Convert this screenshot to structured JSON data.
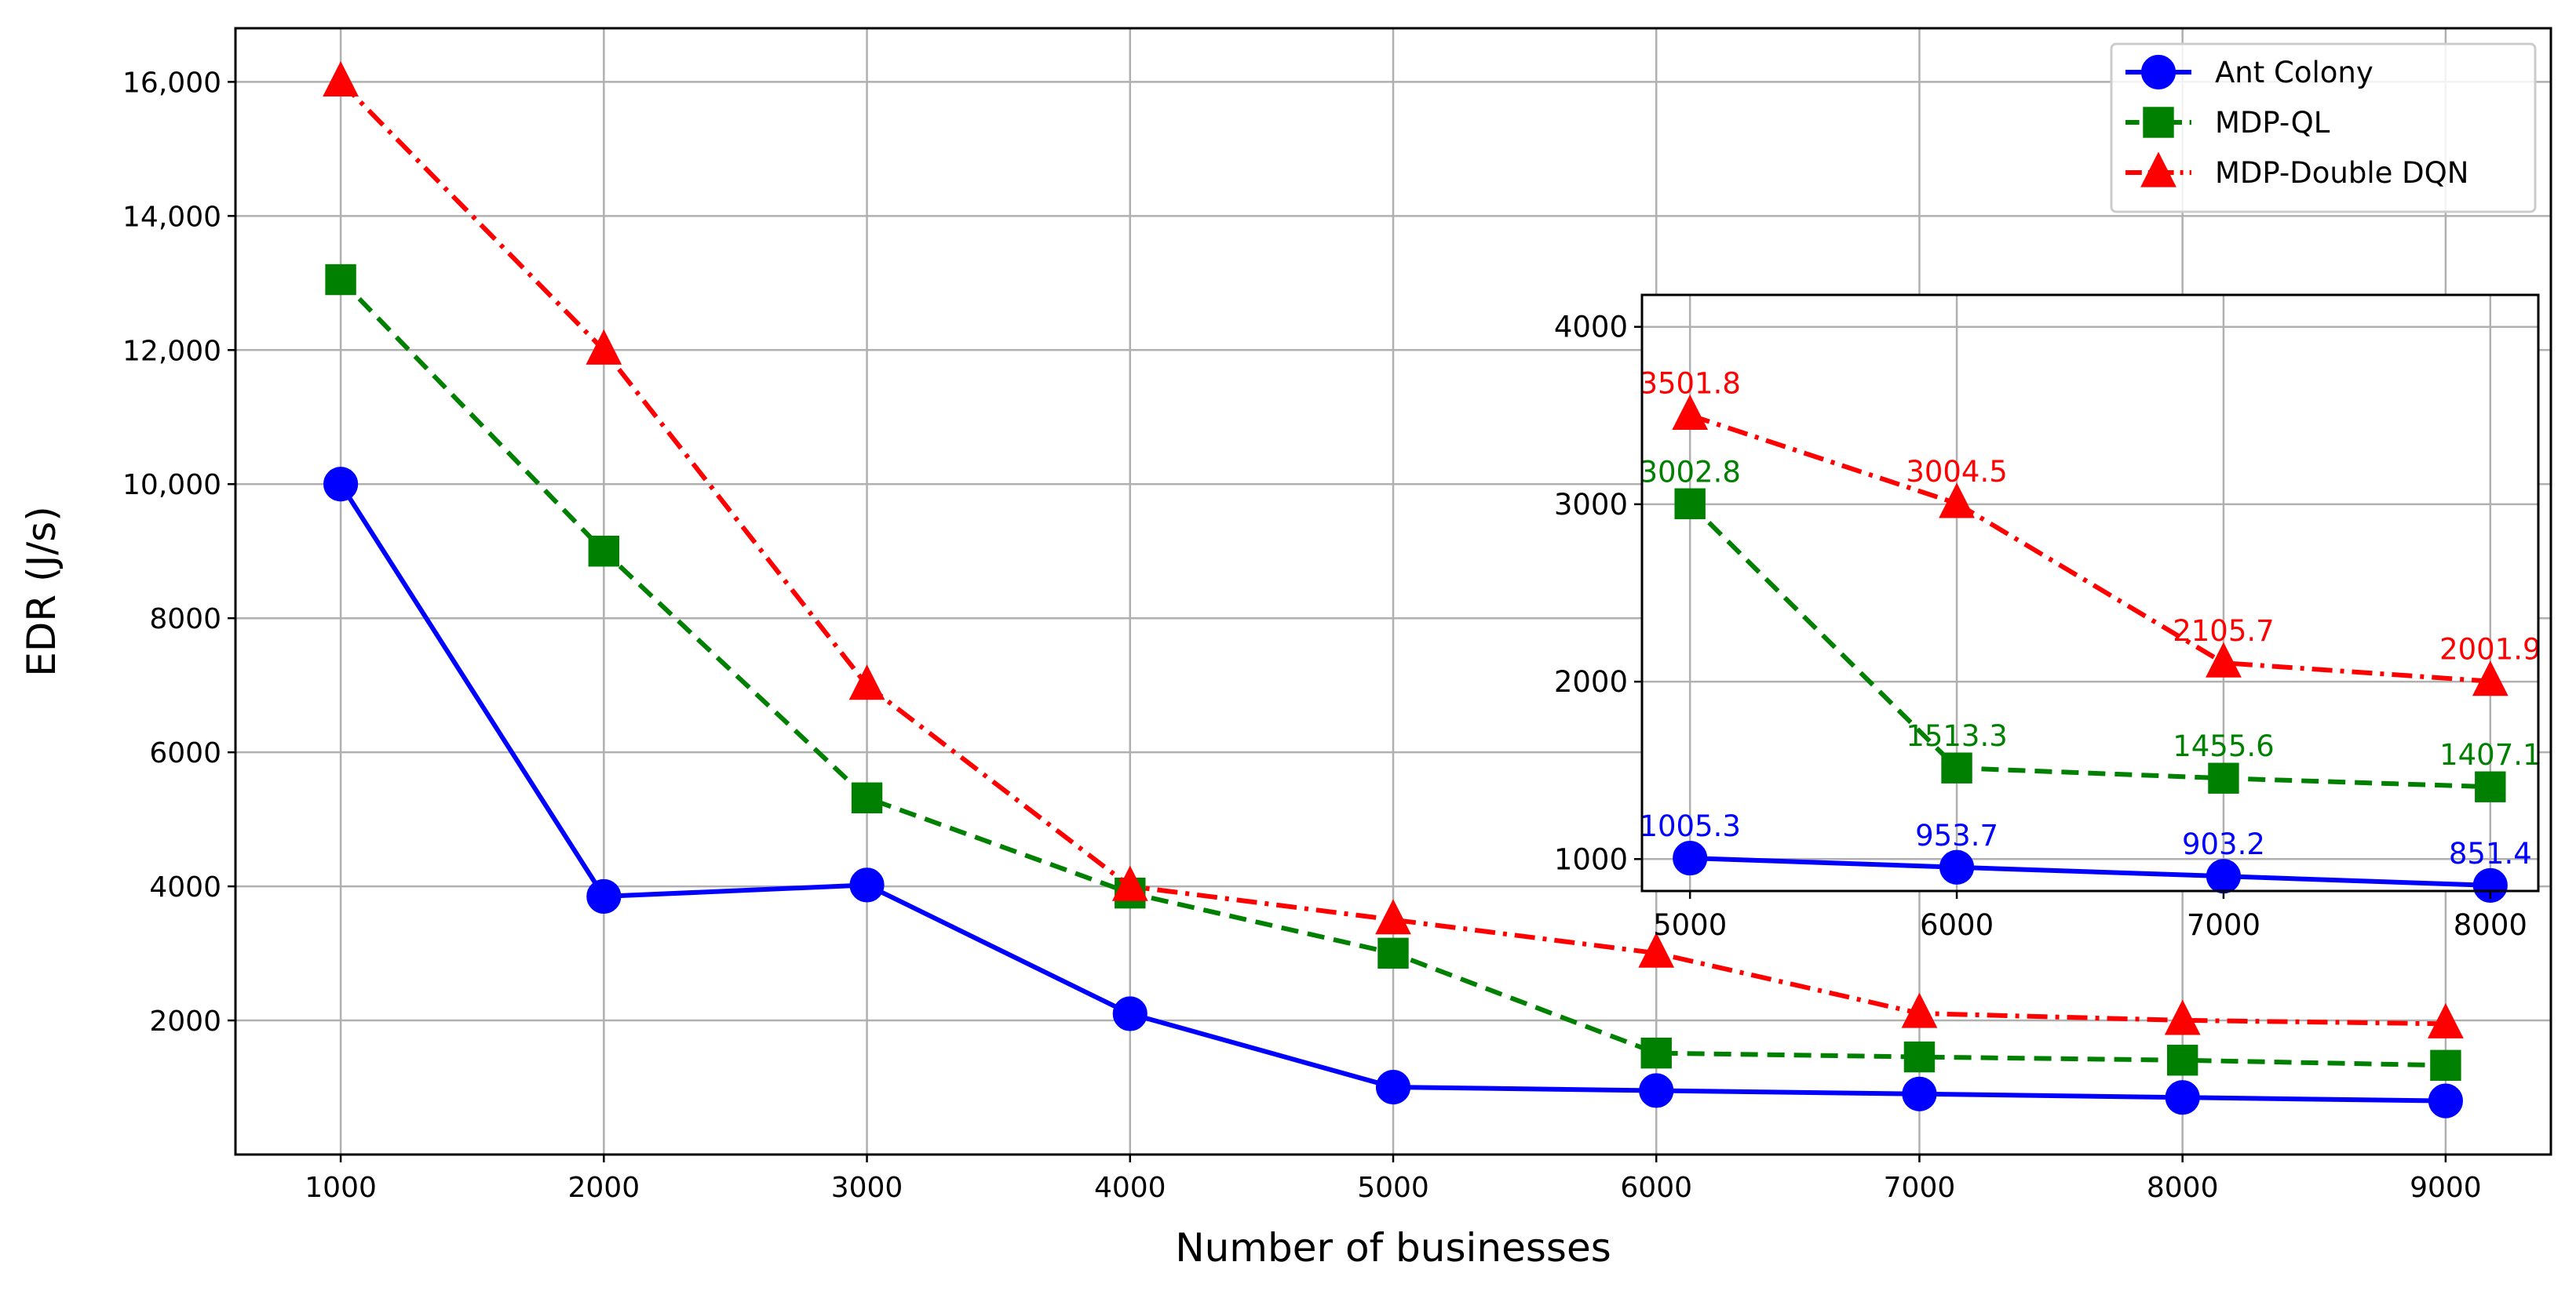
{
  "chart_data": [
    {
      "type": "line",
      "title": "",
      "xlabel": "Number of businesses",
      "ylabel": "EDR (J/s)",
      "x": [
        1000,
        2000,
        3000,
        4000,
        5000,
        6000,
        7000,
        8000,
        9000
      ],
      "x_ticks": [
        "1000",
        "2000",
        "3000",
        "4000",
        "5000",
        "6000",
        "7000",
        "8000",
        "9000"
      ],
      "xlim": [
        600,
        9400
      ],
      "ylim": [
        0,
        16800
      ],
      "y_ticks": [
        {
          "value": 2000,
          "label": "2000"
        },
        {
          "value": 4000,
          "label": "4000"
        },
        {
          "value": 6000,
          "label": "6000"
        },
        {
          "value": 8000,
          "label": "8000"
        },
        {
          "value": 10000,
          "label": "10,000"
        },
        {
          "value": 12000,
          "label": "12,000"
        },
        {
          "value": 14000,
          "label": "14,000"
        },
        {
          "value": 16000,
          "label": "16,000"
        }
      ],
      "grid": true,
      "legend_position": "top-right",
      "series": [
        {
          "name": "Ant Colony",
          "color": "#0000ff",
          "marker": "circle",
          "linestyle": "solid",
          "values": [
            10000,
            3850,
            4020,
            2100,
            1005.3,
            953.7,
            903.2,
            851.4,
            800
          ]
        },
        {
          "name": "MDP-QL",
          "color": "#008000",
          "marker": "square",
          "linestyle": "dashed",
          "values": [
            13050,
            9000,
            5320,
            3900,
            3002.8,
            1513.3,
            1455.6,
            1407.1,
            1330
          ]
        },
        {
          "name": "MDP-Double DQN",
          "color": "#ff0000",
          "marker": "triangle",
          "linestyle": "dashdot",
          "values": [
            16000,
            12000,
            7000,
            4000,
            3501.8,
            3004.5,
            2105.7,
            2001.9,
            1950
          ]
        }
      ]
    },
    {
      "type": "line",
      "role": "inset",
      "title": "",
      "x": [
        5000,
        6000,
        7000,
        8000
      ],
      "x_ticks": [
        "5000",
        "6000",
        "7000",
        "8000"
      ],
      "xlim": [
        4820,
        8180
      ],
      "ylim": [
        820,
        4180
      ],
      "y_ticks": [
        {
          "value": 1000,
          "label": "1000"
        },
        {
          "value": 2000,
          "label": "2000"
        },
        {
          "value": 3000,
          "label": "3000"
        },
        {
          "value": 4000,
          "label": "4000"
        }
      ],
      "grid": true,
      "series": [
        {
          "name": "Ant Colony",
          "color": "#0000ff",
          "marker": "circle",
          "linestyle": "solid",
          "values": [
            1005.3,
            953.7,
            903.2,
            851.4
          ],
          "data_labels": [
            "1005.3",
            "953.7",
            "903.2",
            "851.4"
          ]
        },
        {
          "name": "MDP-QL",
          "color": "#008000",
          "marker": "square",
          "linestyle": "dashed",
          "values": [
            3002.8,
            1513.3,
            1455.6,
            1407.1
          ],
          "data_labels": [
            "3002.8",
            "1513.3",
            "1455.6",
            "1407.1"
          ]
        },
        {
          "name": "MDP-Double DQN",
          "color": "#ff0000",
          "marker": "triangle",
          "linestyle": "dashdot",
          "values": [
            3501.8,
            3004.5,
            2105.7,
            2001.9
          ],
          "data_labels": [
            "3501.8",
            "3004.5",
            "2105.7",
            "2001.9"
          ]
        }
      ]
    }
  ]
}
